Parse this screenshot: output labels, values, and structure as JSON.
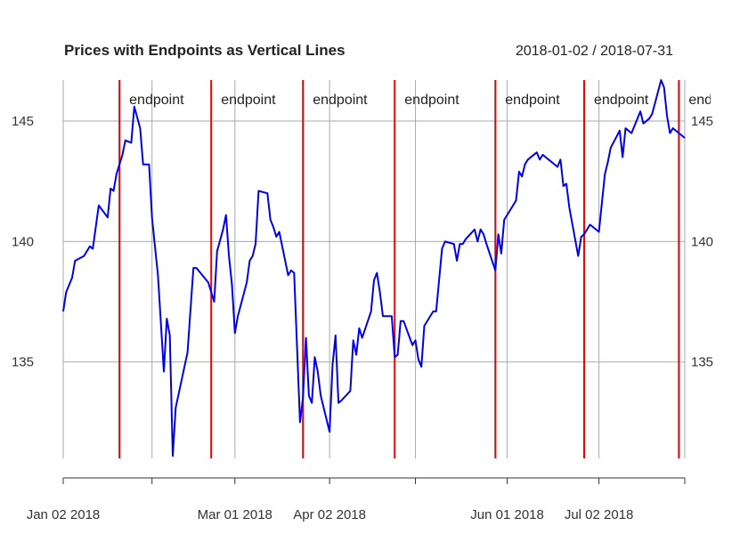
{
  "chart_data": {
    "type": "line",
    "title": "Prices with Endpoints as Vertical Lines",
    "date_range": "2018-01-02 / 2018-07-31",
    "ylim": [
      131,
      146.7
    ],
    "y_ticks": [
      135,
      140,
      145
    ],
    "grid": true,
    "x_range": [
      "2018-01-02",
      "2018-07-31"
    ],
    "x_ticks": [
      {
        "date": "2018-01-02",
        "label": "Jan 02 2018"
      },
      {
        "date": "2018-02-01",
        "label": ""
      },
      {
        "date": "2018-03-01",
        "label": "Mar 01 2018"
      },
      {
        "date": "2018-04-02",
        "label": "Apr 02 2018"
      },
      {
        "date": "2018-05-01",
        "label": ""
      },
      {
        "date": "2018-06-01",
        "label": "Jun 01 2018"
      },
      {
        "date": "2018-07-02",
        "label": "Jul 02 2018"
      },
      {
        "date": "2018-07-31",
        "label": ""
      }
    ],
    "endpoint_label": "endpoint",
    "endpoints": [
      "2018-01-21",
      "2018-02-21",
      "2018-03-24",
      "2018-04-24",
      "2018-05-28",
      "2018-06-27",
      "2018-07-29"
    ],
    "series": [
      {
        "color": "#0000ee",
        "points": [
          [
            "2018-01-02",
            137.1
          ],
          [
            "2018-01-03",
            137.9
          ],
          [
            "2018-01-05",
            138.5
          ],
          [
            "2018-01-06",
            139.2
          ],
          [
            "2018-01-09",
            139.4
          ],
          [
            "2018-01-11",
            139.8
          ],
          [
            "2018-01-12",
            139.7
          ],
          [
            "2018-01-14",
            141.5
          ],
          [
            "2018-01-17",
            141.0
          ],
          [
            "2018-01-18",
            142.2
          ],
          [
            "2018-01-19",
            142.1
          ],
          [
            "2018-01-20",
            142.8
          ],
          [
            "2018-01-22",
            143.6
          ],
          [
            "2018-01-23",
            144.2
          ],
          [
            "2018-01-25",
            144.1
          ],
          [
            "2018-01-26",
            145.6
          ],
          [
            "2018-01-28",
            144.7
          ],
          [
            "2018-01-29",
            143.2
          ],
          [
            "2018-01-31",
            143.2
          ],
          [
            "2018-02-01",
            141.0
          ],
          [
            "2018-02-02",
            139.8
          ],
          [
            "2018-02-03",
            138.6
          ],
          [
            "2018-02-05",
            134.6
          ],
          [
            "2018-02-06",
            136.8
          ],
          [
            "2018-02-07",
            136.1
          ],
          [
            "2018-02-08",
            131.1
          ],
          [
            "2018-02-09",
            133.1
          ],
          [
            "2018-02-13",
            135.4
          ],
          [
            "2018-02-15",
            138.9
          ],
          [
            "2018-02-16",
            138.9
          ],
          [
            "2018-02-20",
            138.3
          ],
          [
            "2018-02-21",
            137.9
          ],
          [
            "2018-02-22",
            137.5
          ],
          [
            "2018-02-23",
            139.6
          ],
          [
            "2018-02-25",
            140.5
          ],
          [
            "2018-02-26",
            141.1
          ],
          [
            "2018-02-27",
            139.4
          ],
          [
            "2018-02-28",
            138.2
          ],
          [
            "2018-03-01",
            136.2
          ],
          [
            "2018-03-02",
            136.9
          ],
          [
            "2018-03-05",
            138.3
          ],
          [
            "2018-03-06",
            139.2
          ],
          [
            "2018-03-07",
            139.4
          ],
          [
            "2018-03-08",
            139.9
          ],
          [
            "2018-03-09",
            142.1
          ],
          [
            "2018-03-12",
            142.0
          ],
          [
            "2018-03-13",
            140.9
          ],
          [
            "2018-03-14",
            140.6
          ],
          [
            "2018-03-15",
            140.2
          ],
          [
            "2018-03-16",
            140.4
          ],
          [
            "2018-03-19",
            138.6
          ],
          [
            "2018-03-20",
            138.8
          ],
          [
            "2018-03-21",
            138.7
          ],
          [
            "2018-03-23",
            132.5
          ],
          [
            "2018-03-24",
            133.5
          ],
          [
            "2018-03-25",
            136.0
          ],
          [
            "2018-03-26",
            133.6
          ],
          [
            "2018-03-27",
            133.3
          ],
          [
            "2018-03-28",
            135.2
          ],
          [
            "2018-03-29",
            134.6
          ],
          [
            "2018-03-30",
            133.6
          ],
          [
            "2018-04-02",
            132.1
          ],
          [
            "2018-04-03",
            134.9
          ],
          [
            "2018-04-04",
            136.1
          ],
          [
            "2018-04-05",
            133.3
          ],
          [
            "2018-04-06",
            133.4
          ],
          [
            "2018-04-09",
            133.8
          ],
          [
            "2018-04-10",
            135.9
          ],
          [
            "2018-04-11",
            135.3
          ],
          [
            "2018-04-12",
            136.4
          ],
          [
            "2018-04-13",
            136.0
          ],
          [
            "2018-04-16",
            137.1
          ],
          [
            "2018-04-17",
            138.4
          ],
          [
            "2018-04-18",
            138.7
          ],
          [
            "2018-04-19",
            137.9
          ],
          [
            "2018-04-20",
            136.9
          ],
          [
            "2018-04-23",
            136.9
          ],
          [
            "2018-04-24",
            135.2
          ],
          [
            "2018-04-25",
            135.3
          ],
          [
            "2018-04-26",
            136.7
          ],
          [
            "2018-04-27",
            136.7
          ],
          [
            "2018-04-30",
            135.7
          ],
          [
            "2018-05-01",
            135.9
          ],
          [
            "2018-05-02",
            135.1
          ],
          [
            "2018-05-03",
            134.8
          ],
          [
            "2018-05-04",
            136.5
          ],
          [
            "2018-05-07",
            137.1
          ],
          [
            "2018-05-08",
            137.1
          ],
          [
            "2018-05-10",
            139.7
          ],
          [
            "2018-05-11",
            140.0
          ],
          [
            "2018-05-14",
            139.9
          ],
          [
            "2018-05-15",
            139.2
          ],
          [
            "2018-05-16",
            139.9
          ],
          [
            "2018-05-17",
            139.9
          ],
          [
            "2018-05-18",
            140.1
          ],
          [
            "2018-05-21",
            140.5
          ],
          [
            "2018-05-22",
            140.0
          ],
          [
            "2018-05-23",
            140.5
          ],
          [
            "2018-05-24",
            140.3
          ],
          [
            "2018-05-25",
            139.9
          ],
          [
            "2018-05-28",
            138.8
          ],
          [
            "2018-05-29",
            140.3
          ],
          [
            "2018-05-30",
            139.5
          ],
          [
            "2018-05-31",
            140.9
          ],
          [
            "2018-06-04",
            141.7
          ],
          [
            "2018-06-05",
            142.9
          ],
          [
            "2018-06-06",
            142.7
          ],
          [
            "2018-06-07",
            143.2
          ],
          [
            "2018-06-08",
            143.4
          ],
          [
            "2018-06-11",
            143.7
          ],
          [
            "2018-06-12",
            143.4
          ],
          [
            "2018-06-13",
            143.6
          ],
          [
            "2018-06-14",
            143.5
          ],
          [
            "2018-06-15",
            143.4
          ],
          [
            "2018-06-18",
            143.1
          ],
          [
            "2018-06-19",
            143.4
          ],
          [
            "2018-06-20",
            142.3
          ],
          [
            "2018-06-21",
            142.4
          ],
          [
            "2018-06-22",
            141.4
          ],
          [
            "2018-06-25",
            139.4
          ],
          [
            "2018-06-26",
            140.2
          ],
          [
            "2018-06-27",
            140.3
          ],
          [
            "2018-06-28",
            140.5
          ],
          [
            "2018-06-29",
            140.7
          ],
          [
            "2018-07-02",
            140.4
          ],
          [
            "2018-07-03",
            141.6
          ],
          [
            "2018-07-04",
            142.8
          ],
          [
            "2018-07-05",
            143.3
          ],
          [
            "2018-07-06",
            143.9
          ],
          [
            "2018-07-09",
            144.6
          ],
          [
            "2018-07-10",
            143.5
          ],
          [
            "2018-07-11",
            144.7
          ],
          [
            "2018-07-12",
            144.6
          ],
          [
            "2018-07-13",
            144.5
          ],
          [
            "2018-07-16",
            145.4
          ],
          [
            "2018-07-17",
            144.9
          ],
          [
            "2018-07-18",
            145.0
          ],
          [
            "2018-07-19",
            145.1
          ],
          [
            "2018-07-20",
            145.3
          ],
          [
            "2018-07-23",
            146.7
          ],
          [
            "2018-07-24",
            146.4
          ],
          [
            "2018-07-25",
            145.2
          ],
          [
            "2018-07-26",
            144.5
          ],
          [
            "2018-07-27",
            144.7
          ],
          [
            "2018-07-31",
            144.3
          ]
        ]
      }
    ],
    "colors": {
      "line": "#0000ee",
      "endpoint": "#ee0000",
      "grid": "#aaaaaa",
      "axis": "#333333",
      "text": "#222222"
    }
  }
}
